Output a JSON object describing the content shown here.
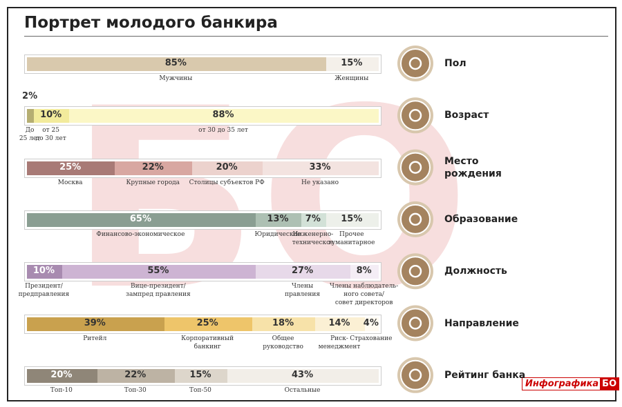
{
  "title": "Портрет молодого банкира",
  "logo": {
    "text": "Инфографика",
    "mark": "БО"
  },
  "chart_data": [
    {
      "type": "stacked-bar-100",
      "title": "Пол",
      "categories": [
        "Мужчины",
        "Женщины"
      ],
      "values": [
        85,
        15
      ],
      "value_labels": [
        "85%",
        "15%"
      ],
      "colors": [
        "#d9c9ad",
        "#f4f0ea"
      ]
    },
    {
      "type": "stacked-bar-100",
      "title": "Возраст",
      "categories": [
        "До\n25 лет",
        "от 25\nдо 30 лет",
        "от 30 до 35 лет"
      ],
      "values": [
        2,
        10,
        88
      ],
      "value_labels": [
        "2%",
        "10%",
        "88%"
      ],
      "colors": [
        "#b5ae72",
        "#f2eb9c",
        "#fbf7c6"
      ]
    },
    {
      "type": "stacked-bar-100",
      "title": "Место\nрождения",
      "categories": [
        "Москва",
        "Крупные города",
        "Столицы субъектов РФ",
        "Не указано"
      ],
      "values": [
        25,
        22,
        20,
        33
      ],
      "value_labels": [
        "25%",
        "22%",
        "20%",
        "33%"
      ],
      "colors": [
        "#a87a76",
        "#d8a7a1",
        "#ecd2cd",
        "#f3e3e0"
      ]
    },
    {
      "type": "stacked-bar-100",
      "title": "Образование",
      "categories": [
        "Финансово-экономическое",
        "Юридическое",
        "Инженерно-\nтехническое",
        "Прочее\nгуманитарное"
      ],
      "values": [
        65,
        13,
        7,
        15
      ],
      "value_labels": [
        "65%",
        "13%",
        "7%",
        "15%"
      ],
      "colors": [
        "#8a9e92",
        "#adc0b3",
        "#d2e1d7",
        "#edf0ea"
      ]
    },
    {
      "type": "stacked-bar-100",
      "title": "Должность",
      "categories": [
        "Президент/\nпредправления",
        "Вице-президент/\nзампред правления",
        "Члены\nправления",
        "Члены наблюдатель-\nного совета/\nсовет директоров"
      ],
      "values": [
        10,
        55,
        27,
        8
      ],
      "value_labels": [
        "10%",
        "55%",
        "27%",
        "8%"
      ],
      "colors": [
        "#a88bb0",
        "#cdb4d3",
        "#e7d9e9",
        "#f4edf5"
      ]
    },
    {
      "type": "stacked-bar-100",
      "title": "Направление",
      "categories": [
        "Ритейл",
        "Корпоративный\nбанкинг",
        "Общее\nруководство",
        "Риск-\nменеджмент",
        "Страхование"
      ],
      "values": [
        39,
        25,
        18,
        14,
        4
      ],
      "value_labels": [
        "39%",
        "25%",
        "18%",
        "14%",
        "4%"
      ],
      "colors": [
        "#c9a14e",
        "#eec56a",
        "#f7e2a9",
        "#fbf0d4",
        "#fffaf0"
      ]
    },
    {
      "type": "stacked-bar-100",
      "title": "Рейтинг банка",
      "categories": [
        "Топ-10",
        "Топ-30",
        "Топ-50",
        "Остальные"
      ],
      "values": [
        20,
        22,
        15,
        43
      ],
      "value_labels": [
        "20%",
        "22%",
        "15%",
        "43%"
      ],
      "colors": [
        "#8f8678",
        "#bdb3a4",
        "#ddd6cb",
        "#f2eee8"
      ]
    }
  ]
}
